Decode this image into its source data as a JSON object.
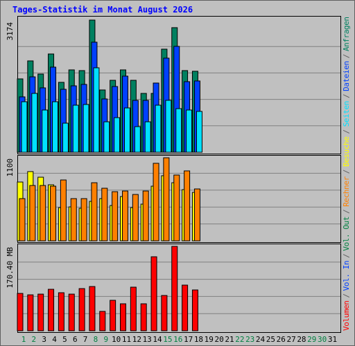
{
  "title": "Tages-Statistik im Monat August 2026",
  "legend_separator": "/",
  "chart_data": [
    {
      "type": "bar",
      "ylim": [
        0,
        3174
      ],
      "yticks": [
        3174
      ],
      "series": [
        {
          "name": "Seiten",
          "color": "#00e0ff",
          "values": [
            1213,
            1413,
            1014,
            1213,
            698,
            1130,
            1147,
            2028,
            731,
            831,
            1064,
            615,
            731,
            1130,
            1247,
            1047,
            1014,
            981,
            null,
            null,
            null,
            null,
            null,
            null,
            null,
            null,
            null,
            null,
            null,
            null,
            null
          ]
        },
        {
          "name": "Dateien",
          "color": "#0040ff",
          "values": [
            1330,
            1811,
            1546,
            2044,
            1512,
            1595,
            1629,
            2643,
            1280,
            1579,
            1828,
            1246,
            1246,
            1662,
            2260,
            2543,
            1695,
            1712,
            null,
            null,
            null,
            null,
            null,
            null,
            null,
            null,
            null,
            null,
            null,
            null,
            null
          ]
        },
        {
          "name": "Anfragen",
          "color": "#008060",
          "values": [
            1762,
            2194,
            1878,
            2360,
            1679,
            1978,
            1961,
            3174,
            1496,
            1728,
            1978,
            1728,
            1413,
            1413,
            2476,
            2992,
            1961,
            1945,
            null,
            null,
            null,
            null,
            null,
            null,
            null,
            null,
            null,
            null,
            null,
            null,
            null
          ]
        }
      ]
    },
    {
      "type": "bar",
      "ylim": [
        0,
        1100
      ],
      "yticks": [
        1100
      ],
      "series": [
        {
          "name": "Rechner",
          "color": "#ff8000",
          "values": [
            550,
            721,
            721,
            712,
            793,
            550,
            550,
            757,
            685,
            640,
            649,
            604,
            649,
            1010,
            1082,
            857,
            911,
            676,
            null,
            null,
            null,
            null,
            null,
            null,
            null,
            null,
            null,
            null,
            null,
            null,
            null
          ]
        },
        {
          "name": "Besuche",
          "color": "#ffff00",
          "values": [
            766,
            902,
            829,
            730,
            433,
            442,
            424,
            514,
            550,
            460,
            577,
            433,
            478,
            712,
            848,
            757,
            667,
            631,
            null,
            null,
            null,
            null,
            null,
            null,
            null,
            null,
            null,
            null,
            null,
            null,
            null
          ]
        }
      ]
    },
    {
      "type": "bar",
      "ylim": [
        0,
        170.4
      ],
      "yticks": [
        {
          "value": 170.4,
          "label": "170.40 MB"
        }
      ],
      "categories": [
        "1",
        "2",
        "3",
        "4",
        "5",
        "6",
        "7",
        "8",
        "9",
        "10",
        "11",
        "12",
        "13",
        "14",
        "15",
        "16",
        "17",
        "18",
        "19",
        "20",
        "21",
        "22",
        "23",
        "24",
        "25",
        "26",
        "27",
        "28",
        "29",
        "30",
        "31"
      ],
      "category_colors": [
        "#008040",
        "#008040",
        "#000000",
        "#000000",
        "#000000",
        "#000000",
        "#000000",
        "#008040",
        "#008040",
        "#000000",
        "#000000",
        "#000000",
        "#000000",
        "#000000",
        "#008040",
        "#008040",
        "#000000",
        "#000000",
        "#000000",
        "#000000",
        "#000000",
        "#008040",
        "#008040",
        "#000000",
        "#000000",
        "#000000",
        "#000000",
        "#000000",
        "#008040",
        "#008040",
        "#000000"
      ],
      "series": [
        {
          "name": "Volumen",
          "color": "#ff0000",
          "values": [
            74.2,
            71.4,
            72.8,
            82.4,
            75.6,
            72.8,
            83.8,
            87.9,
            38.5,
            60.5,
            53.6,
            86.6,
            53.6,
            147.0,
            70.1,
            167.6,
            90.7,
            81.1,
            null,
            null,
            null,
            null,
            null,
            null,
            null,
            null,
            null,
            null,
            null,
            null,
            null
          ]
        },
        {
          "name": "Vol. In",
          "color": "#0040ff",
          "values": [
            null,
            null,
            null,
            null,
            null,
            null,
            null,
            null,
            null,
            null,
            null,
            null,
            null,
            null,
            null,
            null,
            null,
            null,
            null,
            null,
            null,
            null,
            null,
            null,
            null,
            null,
            null,
            null,
            null,
            null,
            null
          ]
        },
        {
          "name": "Vol. Out",
          "color": "#008040",
          "values": [
            null,
            null,
            null,
            null,
            null,
            null,
            null,
            null,
            null,
            null,
            null,
            null,
            null,
            null,
            null,
            null,
            null,
            null,
            null,
            null,
            null,
            null,
            null,
            null,
            null,
            null,
            null,
            null,
            null,
            null,
            null
          ]
        }
      ]
    }
  ]
}
